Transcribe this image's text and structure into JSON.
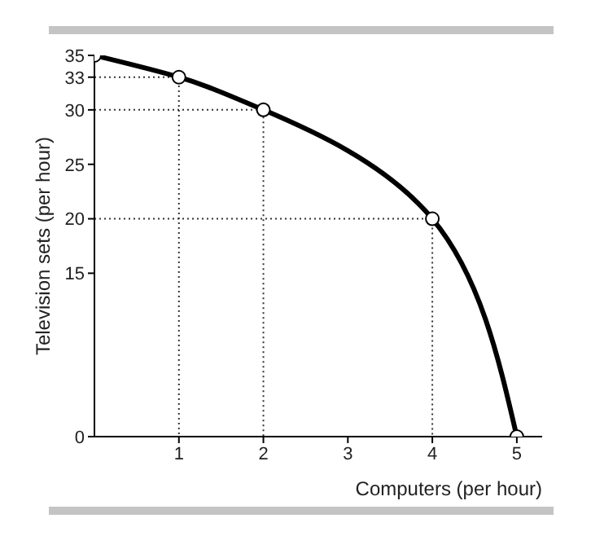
{
  "chart_data": {
    "type": "line",
    "xlabel": "Computers (per hour)",
    "ylabel": "Television sets (per hour)",
    "x": [
      0,
      1,
      2,
      4,
      5
    ],
    "series": [
      {
        "color": "#000000",
        "values": [
          35,
          33,
          30,
          20,
          0
        ]
      },
      {
        "color": "#333333",
        "line_style": "dotted",
        "marker": "none",
        "x": [
          0,
          1,
          1
        ],
        "values": [
          33,
          33,
          0
        ]
      },
      {
        "color": "#333333",
        "line_style": "dotted",
        "marker": "none",
        "x": [
          0,
          2,
          2
        ],
        "values": [
          30,
          30,
          0
        ]
      },
      {
        "color": "#333333",
        "line_style": "dotted",
        "marker": "none",
        "x": [
          0,
          4,
          4
        ],
        "values": [
          20,
          20,
          0
        ]
      }
    ],
    "xlim": [
      0,
      5.3
    ],
    "xticks": [
      1,
      2,
      3,
      4,
      5
    ],
    "ylim": [
      0,
      35
    ],
    "yticks": [
      0,
      15,
      20,
      25,
      30,
      33,
      35
    ],
    "marker": "circle",
    "line_style": "solid"
  }
}
